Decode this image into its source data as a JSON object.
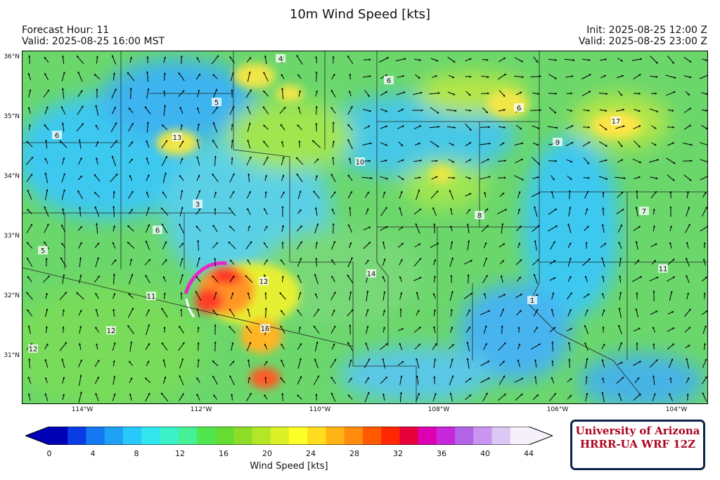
{
  "title": "10m Wind Speed [kts]",
  "header": {
    "forecast_hour": "Forecast Hour: 11",
    "valid_local": "Valid: 2025-08-25 16:00 MST",
    "init": "Init: 2025-08-25 12:00 Z",
    "valid_utc": "Valid: 2025-08-25 23:00 Z"
  },
  "map": {
    "lat_labels": [
      "36°N",
      "35°N",
      "34°N",
      "33°N",
      "32°N",
      "31°N"
    ],
    "lon_labels": [
      "114°W",
      "112°W",
      "110°W",
      "108°W",
      "106°W",
      "104°W"
    ],
    "station_values": [
      {
        "v": "4"
      },
      {
        "v": "6"
      },
      {
        "v": "5"
      },
      {
        "v": "6"
      },
      {
        "v": "13"
      },
      {
        "v": "6"
      },
      {
        "v": "17"
      },
      {
        "v": "9"
      },
      {
        "v": "10"
      },
      {
        "v": "3"
      },
      {
        "v": "8"
      },
      {
        "v": "7"
      },
      {
        "v": "6"
      },
      {
        "v": "5"
      },
      {
        "v": "14"
      },
      {
        "v": "12"
      },
      {
        "v": "11"
      },
      {
        "v": "11"
      },
      {
        "v": "1"
      },
      {
        "v": "16"
      },
      {
        "v": "12"
      },
      {
        "v": "12"
      }
    ]
  },
  "colorbar": {
    "label": "Wind Speed [kts]",
    "ticks": [
      "0",
      "4",
      "8",
      "12",
      "16",
      "20",
      "24",
      "28",
      "32",
      "36",
      "40",
      "44"
    ],
    "colors": [
      "#0000b4",
      "#0a3ce6",
      "#1478f0",
      "#1ea0f5",
      "#28c8fa",
      "#32e6f0",
      "#3cf0c8",
      "#46f096",
      "#50e650",
      "#64dc32",
      "#8cdc28",
      "#b4e628",
      "#dcf028",
      "#ffff28",
      "#ffdc1e",
      "#ffb414",
      "#ff8c0a",
      "#ff5a00",
      "#ff2800",
      "#e6003c",
      "#dc00b4",
      "#c828dc",
      "#b464e6",
      "#c896f0",
      "#dcc8f5",
      "#f5f0fa"
    ]
  },
  "logo": {
    "line1": "University of Arizona",
    "line2": "HRRR-UA WRF 12Z"
  }
}
